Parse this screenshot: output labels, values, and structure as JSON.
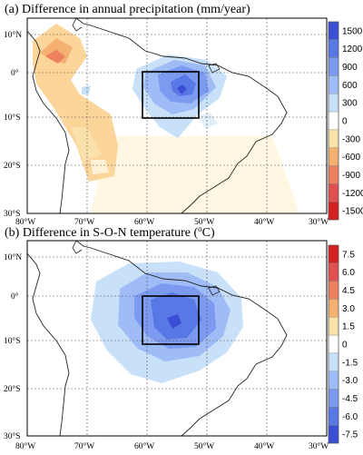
{
  "panel_a": {
    "title": "(a) Difference in annual precipitation (mm/year)",
    "colorbar": {
      "labels": [
        "1500",
        "1200",
        "900",
        "600",
        "300",
        "0",
        "-300",
        "-600",
        "-900",
        "-1200",
        "-1500"
      ],
      "colors": [
        "#3a4fd6",
        "#5878e6",
        "#7c9af0",
        "#9fbcf6",
        "#c8e0f8",
        "#ffffff",
        "#fbe2aa",
        "#f4b070",
        "#ec8060",
        "#e05050",
        "#d42020"
      ]
    }
  },
  "panel_b": {
    "title_pre": "(b) Difference in S-O-N temperature (",
    "title_sup": "o",
    "title_post": "C)",
    "colorbar": {
      "labels": [
        "7.5",
        "6.0",
        "4.5",
        "3.0",
        "1.5",
        "0",
        "-1.5",
        "-3.0",
        "-4.5",
        "-6.0",
        "-7.5"
      ],
      "colors": [
        "#d42020",
        "#e05050",
        "#ec8060",
        "#f4b070",
        "#fbe2aa",
        "#ffffff",
        "#c8e0f8",
        "#9fbcf6",
        "#7c9af0",
        "#5878e6",
        "#3a4fd6"
      ]
    }
  },
  "axes": {
    "lon_labels": [
      "80°W",
      "70°W",
      "60°W",
      "50°W",
      "40°W",
      "30°W"
    ],
    "lat_labels": [
      "10°N",
      "0°",
      "10°S",
      "20°S",
      "30°S"
    ]
  }
}
